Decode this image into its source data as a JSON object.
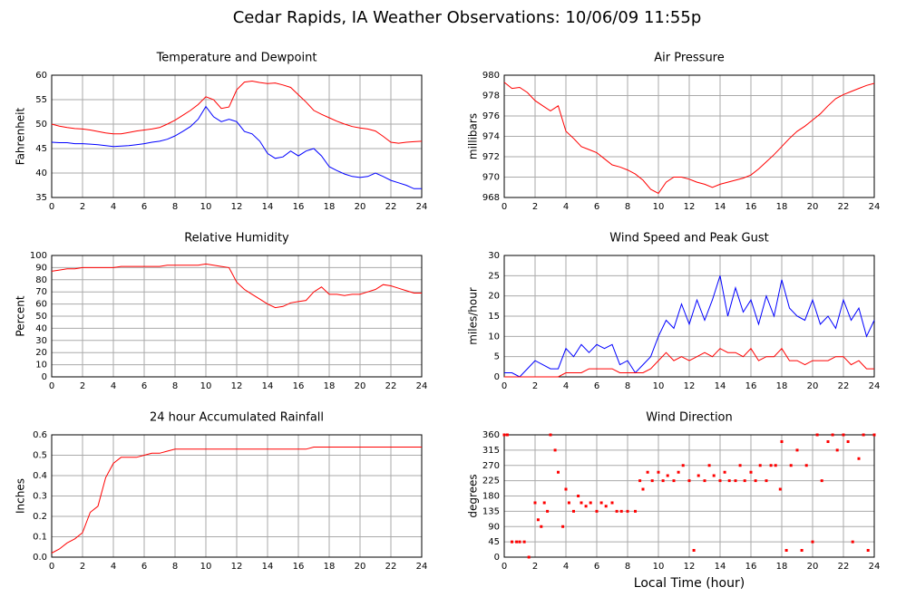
{
  "title": "Cedar Rapids, IA Weather Observations: 10/06/09 11:55p",
  "chart_data": [
    {
      "type": "line",
      "title": "Temperature and Dewpoint",
      "ylabel": "Fahrenheit",
      "xlim": [
        0,
        24
      ],
      "xticks": [
        0,
        2,
        4,
        6,
        8,
        10,
        12,
        14,
        16,
        18,
        20,
        22,
        24
      ],
      "ylim": [
        35,
        60
      ],
      "yticks": [
        35,
        40,
        45,
        50,
        55,
        60
      ],
      "grid": true,
      "x": [
        0,
        0.5,
        1,
        1.5,
        2,
        2.5,
        3,
        3.5,
        4,
        4.5,
        5,
        5.5,
        6,
        6.5,
        7,
        7.5,
        8,
        8.5,
        9,
        9.5,
        10,
        10.5,
        11,
        11.5,
        12,
        12.5,
        13,
        13.5,
        14,
        14.5,
        15,
        15.5,
        16,
        16.5,
        17,
        17.5,
        18,
        18.5,
        19,
        19.5,
        20,
        20.5,
        21,
        21.5,
        22,
        22.5,
        23,
        23.5,
        24
      ],
      "series": [
        {
          "color": "#ff0000",
          "values": [
            50,
            49.6,
            49.3,
            49.1,
            49,
            48.8,
            48.5,
            48.2,
            48,
            48,
            48.3,
            48.6,
            48.8,
            49,
            49.3,
            50,
            50.8,
            51.8,
            52.8,
            54,
            55.6,
            55,
            53.2,
            53.5,
            57,
            58.6,
            58.8,
            58.5,
            58.3,
            58.4,
            58,
            57.5,
            56,
            54.5,
            52.8,
            52,
            51.3,
            50.6,
            50,
            49.5,
            49.2,
            49,
            48.6,
            47.5,
            46.3,
            46.1,
            46.3,
            46.4,
            46.5
          ]
        },
        {
          "color": "#0000ff",
          "values": [
            46.3,
            46.2,
            46.2,
            46,
            46,
            45.9,
            45.8,
            45.6,
            45.4,
            45.5,
            45.6,
            45.8,
            46,
            46.3,
            46.5,
            46.9,
            47.6,
            48.5,
            49.5,
            51,
            53.6,
            51.5,
            50.5,
            51,
            50.5,
            48.5,
            48,
            46.5,
            44,
            43,
            43.3,
            44.5,
            43.5,
            44.5,
            45,
            43.5,
            41.3,
            40.5,
            39.8,
            39.3,
            39.1,
            39.3,
            40,
            39.3,
            38.5,
            38,
            37.5,
            36.8,
            36.8
          ]
        }
      ]
    },
    {
      "type": "line",
      "title": "Air Pressure",
      "ylabel": "millibars",
      "xlim": [
        0,
        24
      ],
      "xticks": [
        0,
        2,
        4,
        6,
        8,
        10,
        12,
        14,
        16,
        18,
        20,
        22,
        24
      ],
      "ylim": [
        968,
        980
      ],
      "yticks": [
        968,
        970,
        972,
        974,
        976,
        978,
        980
      ],
      "grid": true,
      "x": [
        0,
        0.5,
        1,
        1.5,
        2,
        2.5,
        3,
        3.5,
        4,
        4.5,
        5,
        5.5,
        6,
        6.5,
        7,
        7.5,
        8,
        8.5,
        9,
        9.5,
        10,
        10.5,
        11,
        11.5,
        12,
        12.5,
        13,
        13.5,
        14,
        14.5,
        15,
        15.5,
        16,
        16.5,
        17,
        17.5,
        18,
        18.5,
        19,
        19.5,
        20,
        20.5,
        21,
        21.5,
        22,
        22.5,
        23,
        23.5,
        24
      ],
      "series": [
        {
          "color": "#ff0000",
          "values": [
            979.3,
            978.7,
            978.8,
            978.3,
            977.5,
            977,
            976.5,
            977,
            974.5,
            973.8,
            973,
            972.7,
            972.4,
            971.8,
            971.2,
            971,
            970.7,
            970.3,
            969.7,
            968.8,
            968.4,
            969.5,
            970,
            970,
            969.8,
            969.5,
            969.3,
            969,
            969.3,
            969.5,
            969.7,
            969.9,
            970.2,
            970.8,
            971.5,
            972.2,
            973,
            973.8,
            974.5,
            975,
            975.6,
            976.2,
            977,
            977.7,
            978.1,
            978.4,
            978.7,
            979,
            979.2
          ]
        }
      ]
    },
    {
      "type": "line",
      "title": "Relative Humidity",
      "ylabel": "Percent",
      "xlim": [
        0,
        24
      ],
      "xticks": [
        0,
        2,
        4,
        6,
        8,
        10,
        12,
        14,
        16,
        18,
        20,
        22,
        24
      ],
      "ylim": [
        0,
        100
      ],
      "yticks": [
        0,
        10,
        20,
        30,
        40,
        50,
        60,
        70,
        80,
        90,
        100
      ],
      "grid": true,
      "x": [
        0,
        0.5,
        1,
        1.5,
        2,
        2.5,
        3,
        3.5,
        4,
        4.5,
        5,
        5.5,
        6,
        6.5,
        7,
        7.5,
        8,
        8.5,
        9,
        9.5,
        10,
        10.5,
        11,
        11.5,
        12,
        12.5,
        13,
        13.5,
        14,
        14.5,
        15,
        15.5,
        16,
        16.5,
        17,
        17.5,
        18,
        18.5,
        19,
        19.5,
        20,
        20.5,
        21,
        21.5,
        22,
        22.5,
        23,
        23.5,
        24
      ],
      "series": [
        {
          "color": "#ff0000",
          "values": [
            87,
            88,
            89,
            89,
            90,
            90,
            90,
            90,
            90,
            91,
            91,
            91,
            91,
            91,
            91,
            92,
            92,
            92,
            92,
            92,
            93,
            92,
            91,
            90,
            78,
            72,
            68,
            64,
            60,
            57,
            58,
            61,
            62,
            63,
            70,
            74,
            68,
            68,
            67,
            68,
            68,
            70,
            72,
            76,
            75,
            73,
            71,
            69,
            69
          ]
        }
      ]
    },
    {
      "type": "line",
      "title": "Wind Speed and Peak Gust",
      "ylabel": "miles/hour",
      "xlim": [
        0,
        24
      ],
      "xticks": [
        0,
        2,
        4,
        6,
        8,
        10,
        12,
        14,
        16,
        18,
        20,
        22,
        24
      ],
      "ylim": [
        0,
        30
      ],
      "yticks": [
        0,
        5,
        10,
        15,
        20,
        25,
        30
      ],
      "grid": true,
      "x": [
        0,
        0.5,
        1,
        1.5,
        2,
        2.5,
        3,
        3.5,
        4,
        4.5,
        5,
        5.5,
        6,
        6.5,
        7,
        7.5,
        8,
        8.5,
        9,
        9.5,
        10,
        10.5,
        11,
        11.5,
        12,
        12.5,
        13,
        13.5,
        14,
        14.5,
        15,
        15.5,
        16,
        16.5,
        17,
        17.5,
        18,
        18.5,
        19,
        19.5,
        20,
        20.5,
        21,
        21.5,
        22,
        22.5,
        23,
        23.5,
        24
      ],
      "series": [
        {
          "color": "#0000ff",
          "values": [
            1,
            1,
            0,
            2,
            4,
            3,
            2,
            2,
            7,
            5,
            8,
            6,
            8,
            7,
            8,
            3,
            4,
            1,
            3,
            5,
            10,
            14,
            12,
            18,
            13,
            19,
            14,
            19,
            25,
            15,
            22,
            16,
            19,
            13,
            20,
            15,
            24,
            17,
            15,
            14,
            19,
            13,
            15,
            12,
            19,
            14,
            17,
            10,
            14
          ]
        },
        {
          "color": "#ff0000",
          "values": [
            0,
            0,
            0,
            0,
            0,
            0,
            0,
            0,
            1,
            1,
            1,
            2,
            2,
            2,
            2,
            1,
            1,
            1,
            1,
            2,
            4,
            6,
            4,
            5,
            4,
            5,
            6,
            5,
            7,
            6,
            6,
            5,
            7,
            4,
            5,
            5,
            7,
            4,
            4,
            3,
            4,
            4,
            4,
            5,
            5,
            3,
            4,
            2,
            2
          ]
        }
      ]
    },
    {
      "type": "line",
      "title": "24 hour Accumulated Rainfall",
      "ylabel": "Inches",
      "xlim": [
        0,
        24
      ],
      "xticks": [
        0,
        2,
        4,
        6,
        8,
        10,
        12,
        14,
        16,
        18,
        20,
        22,
        24
      ],
      "ylim": [
        0,
        0.6
      ],
      "yticks": [
        {
          "value": 0,
          "label": "0.0"
        },
        0.1,
        0.2,
        0.3,
        0.4,
        0.5,
        0.6
      ],
      "grid": true,
      "x": [
        0,
        0.5,
        1,
        1.5,
        2,
        2.5,
        3,
        3.5,
        4,
        4.5,
        5,
        5.5,
        6,
        6.5,
        7,
        7.5,
        8,
        8.5,
        9,
        9.5,
        10,
        10.5,
        11,
        11.5,
        12,
        12.5,
        13,
        13.5,
        14,
        14.5,
        15,
        15.5,
        16,
        16.5,
        17,
        17.5,
        18,
        18.5,
        19,
        19.5,
        20,
        20.5,
        21,
        21.5,
        22,
        22.5,
        23,
        23.5,
        24
      ],
      "series": [
        {
          "color": "#ff0000",
          "values": [
            0.02,
            0.04,
            0.07,
            0.09,
            0.12,
            0.22,
            0.25,
            0.39,
            0.46,
            0.49,
            0.49,
            0.49,
            0.5,
            0.51,
            0.51,
            0.52,
            0.53,
            0.53,
            0.53,
            0.53,
            0.53,
            0.53,
            0.53,
            0.53,
            0.53,
            0.53,
            0.53,
            0.53,
            0.53,
            0.53,
            0.53,
            0.53,
            0.53,
            0.53,
            0.54,
            0.54,
            0.54,
            0.54,
            0.54,
            0.54,
            0.54,
            0.54,
            0.54,
            0.54,
            0.54,
            0.54,
            0.54,
            0.54,
            0.54
          ]
        }
      ]
    },
    {
      "type": "scatter",
      "title": "Wind Direction",
      "ylabel": "degrees",
      "xlabel": "Local Time (hour)",
      "xlim": [
        0,
        24
      ],
      "xticks": [
        0,
        2,
        4,
        6,
        8,
        10,
        12,
        14,
        16,
        18,
        20,
        22,
        24
      ],
      "ylim": [
        0,
        360
      ],
      "yticks": [
        0,
        45,
        90,
        135,
        180,
        225,
        270,
        315,
        360
      ],
      "grid": true,
      "color": "#ff0000",
      "x": [
        0,
        0.2,
        0.5,
        0.8,
        1,
        1.3,
        1.6,
        2,
        2.2,
        2.4,
        2.6,
        2.8,
        3,
        3.3,
        3.5,
        3.8,
        4,
        4.2,
        4.5,
        4.8,
        5,
        5.3,
        5.6,
        6,
        6.3,
        6.6,
        7,
        7.3,
        7.6,
        8,
        8.5,
        8.8,
        9,
        9.3,
        9.6,
        10,
        10.3,
        10.6,
        11,
        11.3,
        11.6,
        12,
        12.3,
        12.6,
        13,
        13.3,
        13.6,
        14,
        14.3,
        14.6,
        15,
        15.3,
        15.6,
        16,
        16.3,
        16.6,
        17,
        17.3,
        17.6,
        17.9,
        18,
        18.3,
        18.6,
        19,
        19.3,
        19.6,
        20,
        20.3,
        20.6,
        21,
        21.3,
        21.6,
        22,
        22.3,
        22.6,
        23,
        23.3,
        23.6,
        24
      ],
      "values": [
        360,
        360,
        45,
        45,
        45,
        45,
        0,
        160,
        110,
        90,
        160,
        135,
        360,
        315,
        250,
        90,
        200,
        160,
        135,
        180,
        160,
        150,
        160,
        135,
        160,
        150,
        160,
        135,
        135,
        135,
        135,
        225,
        200,
        250,
        225,
        250,
        225,
        240,
        225,
        250,
        270,
        225,
        20,
        240,
        225,
        270,
        240,
        225,
        250,
        225,
        225,
        270,
        225,
        250,
        225,
        270,
        225,
        270,
        270,
        200,
        340,
        20,
        270,
        315,
        20,
        270,
        45,
        360,
        225,
        340,
        360,
        315,
        360,
        340,
        45,
        290,
        360,
        20,
        360
      ]
    }
  ]
}
